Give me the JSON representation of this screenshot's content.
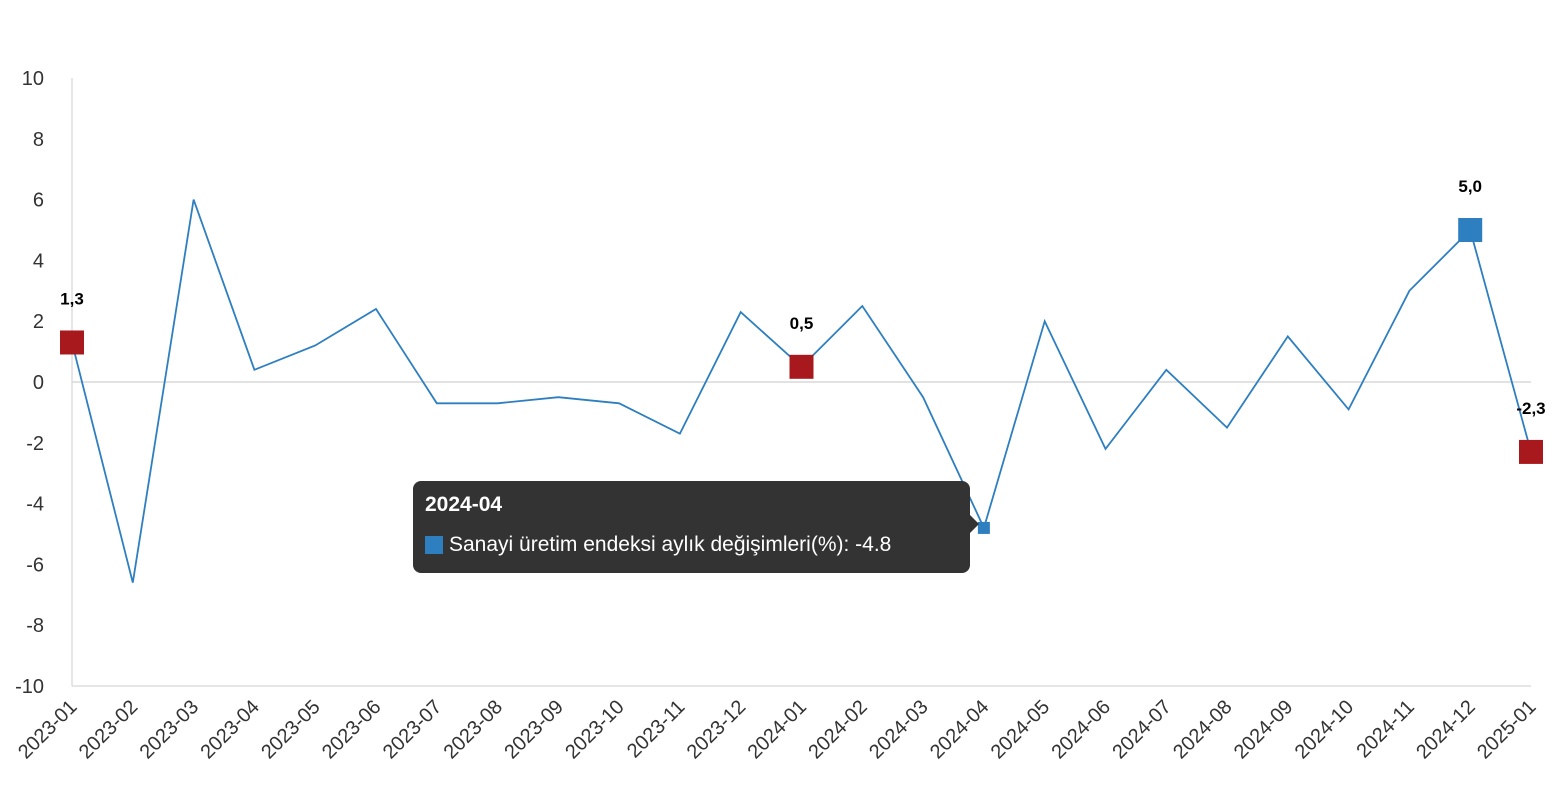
{
  "chart_data": {
    "type": "line",
    "categories": [
      "2023-01",
      "2023-02",
      "2023-03",
      "2023-04",
      "2023-05",
      "2023-06",
      "2023-07",
      "2023-08",
      "2023-09",
      "2023-10",
      "2023-11",
      "2023-12",
      "2024-01",
      "2024-02",
      "2024-03",
      "2024-04",
      "2024-05",
      "2024-06",
      "2024-07",
      "2024-08",
      "2024-09",
      "2024-10",
      "2024-11",
      "2024-12",
      "2025-01"
    ],
    "series": [
      {
        "name": "Sanayi üretim endeksi aylık değişimleri(%)",
        "values": [
          1.3,
          -6.6,
          6.0,
          0.4,
          1.2,
          2.4,
          -0.7,
          -0.7,
          -0.5,
          -0.7,
          -1.7,
          2.3,
          0.5,
          2.5,
          -0.5,
          -4.8,
          2.0,
          -2.2,
          0.4,
          -1.5,
          1.5,
          -0.9,
          3.0,
          5.0,
          -2.3
        ]
      }
    ],
    "ylim": [
      -10,
      10
    ],
    "yticks": [
      10,
      8,
      6,
      4,
      2,
      0,
      -2,
      -4,
      -6,
      -8,
      -10
    ],
    "highlighted_points": [
      {
        "category": "2023-01",
        "label": "1,3",
        "color": "#a8191d"
      },
      {
        "category": "2024-01",
        "label": "0,5",
        "color": "#a8191d"
      },
      {
        "category": "2024-12",
        "label": "5,0",
        "color": "#2e7fc0"
      },
      {
        "category": "2025-01",
        "label": "-2,3",
        "color": "#a8191d"
      }
    ],
    "line_color": "#2e7fc0",
    "zero_line": true,
    "grid": false
  },
  "tooltip": {
    "title": "2024-04",
    "text": "Sanayi üretim endeksi aylık değişimleri(%): -4.8",
    "swatch_color": "#2e7fc0",
    "hover_category": "2024-04"
  }
}
